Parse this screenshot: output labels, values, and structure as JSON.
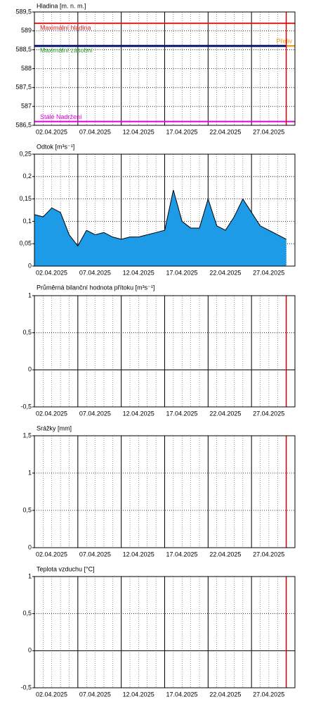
{
  "chart_data": [
    {
      "type": "line",
      "title": "Hladina [m. n. m.]",
      "x": [
        "2025-04-02",
        "2025-05-01"
      ],
      "series": [
        {
          "color": "#0a1a6e",
          "values": [
            588.6,
            588.6
          ]
        }
      ],
      "ylim": [
        586.5,
        589.5
      ],
      "yticks": [
        {
          "value": 586.5,
          "label": "586,5"
        },
        587,
        {
          "value": 587.5,
          "label": "587,5"
        },
        588,
        {
          "value": 588.5,
          "label": "588,5"
        },
        589,
        {
          "value": 589.5,
          "label": "589,5"
        }
      ],
      "xlim": [
        "2025-04-02",
        "2025-05-02"
      ],
      "xticks": [
        {
          "value": "2025-04-02",
          "label": "02.04.2025"
        },
        {
          "value": "2025-04-07",
          "label": "07.04.2025"
        },
        {
          "value": "2025-04-12",
          "label": "12.04.2025"
        },
        {
          "value": "2025-04-17",
          "label": "17.04.2025"
        },
        {
          "value": "2025-04-22",
          "label": "22.04.2025"
        },
        {
          "value": "2025-04-27",
          "label": "27.04.2025"
        }
      ],
      "grid": true,
      "minor_grid_days": 1,
      "ref_lines": [
        {
          "label": "Maximální hladina",
          "value": 589.2,
          "color": "#e02020",
          "label_pos": "below",
          "label_align": "left"
        },
        {
          "label": "Maximální zásobní",
          "value": 588.6,
          "color": "#2a9a2a",
          "label_pos": "below",
          "label_align": "left"
        },
        {
          "label": "Přeliv",
          "value": 588.6,
          "color": "#f0a020",
          "label_pos": "above",
          "label_align": "right"
        },
        {
          "label": "Stálé Nadržení",
          "value": 586.6,
          "color": "#e000e0",
          "label_pos": "above",
          "label_align": "left"
        }
      ],
      "now_line": {
        "value": "2025-05-01",
        "color": "#e00000"
      }
    },
    {
      "type": "area",
      "title": "Odtok [m³s⁻¹]",
      "x": [
        "2025-04-02",
        "2025-04-03",
        "2025-04-04",
        "2025-04-05",
        "2025-04-06",
        "2025-04-07",
        "2025-04-08",
        "2025-04-09",
        "2025-04-10",
        "2025-04-11",
        "2025-04-12",
        "2025-04-13",
        "2025-04-14",
        "2025-04-15",
        "2025-04-16",
        "2025-04-17",
        "2025-04-18",
        "2025-04-19",
        "2025-04-20",
        "2025-04-21",
        "2025-04-22",
        "2025-04-23",
        "2025-04-24",
        "2025-04-25",
        "2025-04-26",
        "2025-04-27",
        "2025-04-28",
        "2025-04-29",
        "2025-04-30",
        "2025-05-01"
      ],
      "series": [
        {
          "color": "#1e9be6",
          "edge_color": "#000000",
          "values": [
            0.115,
            0.11,
            0.13,
            0.12,
            0.07,
            0.045,
            0.08,
            0.07,
            0.075,
            0.065,
            0.06,
            0.065,
            0.065,
            0.07,
            0.075,
            0.08,
            0.17,
            0.1,
            0.085,
            0.085,
            0.15,
            0.09,
            0.08,
            0.11,
            0.15,
            0.12,
            0.09,
            0.08,
            0.07,
            0.06
          ]
        }
      ],
      "ylim": [
        0,
        0.25
      ],
      "yticks": [
        0,
        {
          "value": 0.05,
          "label": "0,05"
        },
        {
          "value": 0.1,
          "label": "0,1"
        },
        {
          "value": 0.15,
          "label": "0,15"
        },
        {
          "value": 0.2,
          "label": "0,2"
        },
        {
          "value": 0.25,
          "label": "0,25"
        }
      ],
      "xlim": [
        "2025-04-02",
        "2025-05-02"
      ],
      "xticks": [
        {
          "value": "2025-04-02",
          "label": "02.04.2025"
        },
        {
          "value": "2025-04-07",
          "label": "07.04.2025"
        },
        {
          "value": "2025-04-12",
          "label": "12.04.2025"
        },
        {
          "value": "2025-04-17",
          "label": "17.04.2025"
        },
        {
          "value": "2025-04-22",
          "label": "22.04.2025"
        },
        {
          "value": "2025-04-27",
          "label": "27.04.2025"
        }
      ],
      "grid": true,
      "minor_grid_days": 1
    },
    {
      "type": "line",
      "title": "Průměrná bilanční hodnota přítoku [m³s⁻¹]",
      "ylim": [
        -0.5,
        1
      ],
      "yticks": [
        {
          "value": -0.5,
          "label": "-0,5"
        },
        0,
        {
          "value": 0.5,
          "label": "0,5"
        },
        1
      ],
      "xlim": [
        "2025-04-02",
        "2025-05-02"
      ],
      "xticks": [
        {
          "value": "2025-04-02",
          "label": "02.04.2025"
        },
        {
          "value": "2025-04-07",
          "label": "07.04.2025"
        },
        {
          "value": "2025-04-12",
          "label": "12.04.2025"
        },
        {
          "value": "2025-04-17",
          "label": "17.04.2025"
        },
        {
          "value": "2025-04-22",
          "label": "22.04.2025"
        },
        {
          "value": "2025-04-27",
          "label": "27.04.2025"
        }
      ],
      "grid": true,
      "minor_grid_days": 1,
      "now_line": {
        "value": "2025-05-01",
        "color": "#e00000"
      }
    },
    {
      "type": "line",
      "title": "Srážky [mm]",
      "ylim": [
        0,
        1.5
      ],
      "yticks": [
        0,
        {
          "value": 0.5,
          "label": "0,5"
        },
        1,
        {
          "value": 1.5,
          "label": "1,5"
        }
      ],
      "xlim": [
        "2025-04-02",
        "2025-05-02"
      ],
      "xticks": [
        {
          "value": "2025-04-02",
          "label": "02.04.2025"
        },
        {
          "value": "2025-04-07",
          "label": "07.04.2025"
        },
        {
          "value": "2025-04-12",
          "label": "12.04.2025"
        },
        {
          "value": "2025-04-17",
          "label": "17.04.2025"
        },
        {
          "value": "2025-04-22",
          "label": "22.04.2025"
        },
        {
          "value": "2025-04-27",
          "label": "27.04.2025"
        }
      ],
      "grid": true,
      "minor_grid_days": 1,
      "now_line": {
        "value": "2025-05-01",
        "color": "#e00000"
      }
    },
    {
      "type": "line",
      "title": "Teplota vzduchu [°C]",
      "ylim": [
        -0.5,
        1
      ],
      "yticks": [
        {
          "value": -0.5,
          "label": "-0,5"
        },
        0,
        {
          "value": 0.5,
          "label": "0,5"
        },
        1
      ],
      "xlim": [
        "2025-04-02",
        "2025-05-02"
      ],
      "xticks": [
        {
          "value": "2025-04-02",
          "label": "02.04.2025"
        },
        {
          "value": "2025-04-07",
          "label": "07.04.2025"
        },
        {
          "value": "2025-04-12",
          "label": "12.04.2025"
        },
        {
          "value": "2025-04-17",
          "label": "17.04.2025"
        },
        {
          "value": "2025-04-22",
          "label": "22.04.2025"
        },
        {
          "value": "2025-04-27",
          "label": "27.04.2025"
        }
      ],
      "grid": true,
      "minor_grid_days": 1,
      "now_line": {
        "value": "2025-05-01",
        "color": "#e00000"
      }
    }
  ]
}
